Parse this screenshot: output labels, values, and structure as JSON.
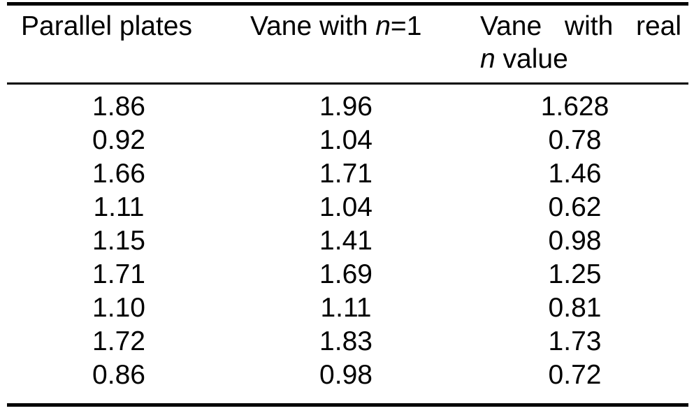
{
  "table": {
    "headers": {
      "col1": {
        "text": "Parallel plates"
      },
      "col2": {
        "pre": "Vane with ",
        "n": "n",
        "post": "=1"
      },
      "col3": {
        "line1": "Vane with real",
        "n": "n",
        "line2_rest": " value"
      }
    },
    "rows": [
      [
        "1.86",
        "1.96",
        "1.628"
      ],
      [
        "0.92",
        "1.04",
        "0.78"
      ],
      [
        "1.66",
        "1.71",
        "1.46"
      ],
      [
        "1.11",
        "1.04",
        "0.62"
      ],
      [
        "1.15",
        "1.41",
        "0.98"
      ],
      [
        "1.71",
        "1.69",
        "1.25"
      ],
      [
        "1.10",
        "1.11",
        "0.81"
      ],
      [
        "1.72",
        "1.83",
        "1.73"
      ],
      [
        "0.86",
        "0.98",
        "0.72"
      ]
    ],
    "colors": {
      "text": "#000000",
      "rule": "#000000",
      "background": "#ffffff"
    }
  }
}
